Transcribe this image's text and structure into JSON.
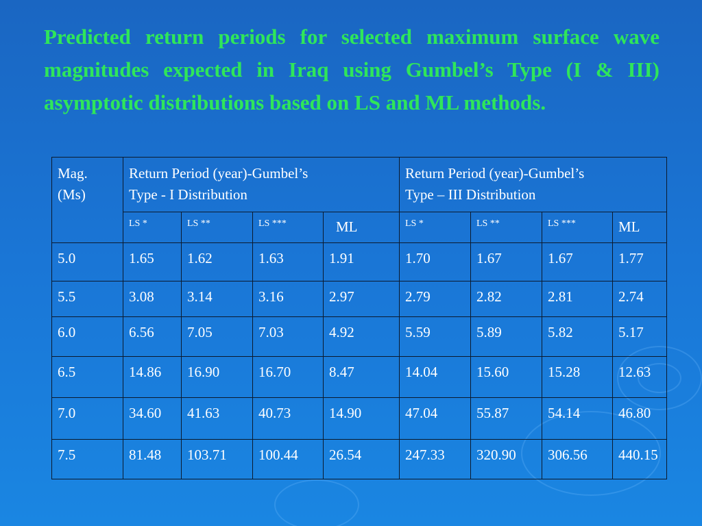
{
  "title": "Predicted return periods for selected maximum surface wave magnitudes expected in Iraq using Gumbel’s Type (I & III) asymptotic distributions based on LS and ML methods.",
  "table": {
    "mag_header_line1": "Mag.",
    "mag_header_line2": "(Ms)",
    "group1_header_line1": "Return Period (year)-Gumbel’s",
    "group1_header_line2": "Type - I Distribution",
    "group2_header_line1": "Return Period (year)-Gumbel’s",
    "group2_header_line2": "Type – III Distribution",
    "subheaders": [
      "LS *",
      "LS **",
      "LS ***",
      "ML",
      "LS *",
      "LS **",
      "LS ***",
      "ML"
    ],
    "rows": [
      [
        "5.0",
        "1.65",
        "1.62",
        "1.63",
        "1.91",
        "1.70",
        "1.67",
        "1.67",
        "1.77"
      ],
      [
        "5.5",
        "3.08",
        "3.14",
        "3.16",
        "2.97",
        "2.79",
        "2.82",
        "2.81",
        "2.74"
      ],
      [
        "6.0",
        "6.56",
        "7.05",
        "7.03",
        "4.92",
        "5.59",
        "5.89",
        "5.82",
        "5.17"
      ],
      [
        "6.5",
        "14.86",
        "16.90",
        "16.70",
        "8.47",
        "14.04",
        "15.60",
        "15.28",
        "12.63"
      ],
      [
        "7.0",
        "34.60",
        "41.63",
        "40.73",
        "14.90",
        "47.04",
        "55.87",
        "54.14",
        "46.80"
      ],
      [
        "7.5",
        "81.48",
        "103.71",
        "100.44",
        "26.54",
        "247.33",
        "320.90",
        "306.56",
        "440.15"
      ]
    ]
  },
  "colors": {
    "title": "#2fe65a",
    "background": "#1a76d6",
    "text": "#ffffff",
    "grid": "#0b1a2e"
  }
}
